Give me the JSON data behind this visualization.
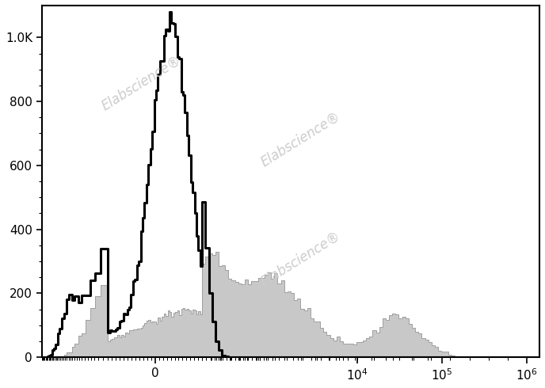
{
  "background_color": "#ffffff",
  "ylim": [
    0,
    1100
  ],
  "ytick_values": [
    0,
    200,
    400,
    600,
    800,
    1000
  ],
  "ytick_labels": [
    "0",
    "200",
    "400",
    "600",
    "800",
    "1.0K"
  ],
  "watermark": "Elabscience",
  "watermark_color": "#cccccc",
  "line_color_black": "#000000",
  "fill_color_gray": "#c8c8c8",
  "fill_edge_gray": "#a0a0a0",
  "linewidth_black": 2.2,
  "linewidth_gray": 0.7,
  "linthresh": 150,
  "linscale": 0.5,
  "xlim_low": -900,
  "xlim_high": 1400000,
  "black_peak": 1080,
  "gray_peak": 330
}
